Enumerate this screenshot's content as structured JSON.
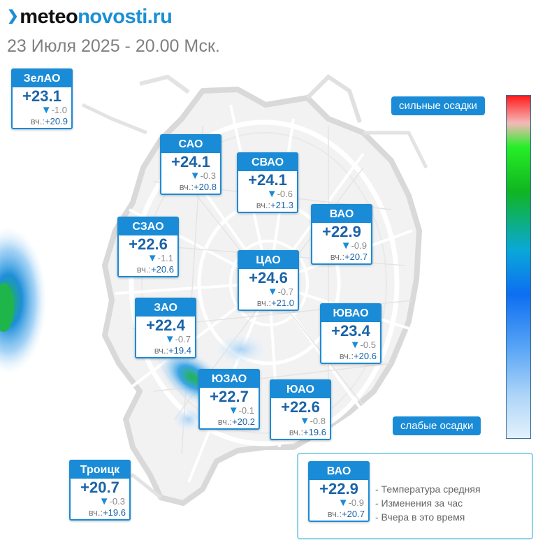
{
  "logo": {
    "part1": "meteo",
    "part2": "novosti.ru"
  },
  "datetime": "23 Июля 2025 - 20.00 Мск.",
  "yesterday_prefix": "вч.:",
  "regions": [
    {
      "name": "ЗелАО",
      "temp": "+23.1",
      "delta": "-1.0",
      "yesterday": "+20.9"
    },
    {
      "name": "САО",
      "temp": "+24.1",
      "delta": "-0.3",
      "yesterday": "+20.8"
    },
    {
      "name": "СВАО",
      "temp": "+24.1",
      "delta": "-0.6",
      "yesterday": "+21.3"
    },
    {
      "name": "ВАО",
      "temp": "+22.9",
      "delta": "-0.9",
      "yesterday": "+20.7"
    },
    {
      "name": "СЗАО",
      "temp": "+22.6",
      "delta": "-1.1",
      "yesterday": "+20.6"
    },
    {
      "name": "ЦАО",
      "temp": "+24.6",
      "delta": "-0.7",
      "yesterday": "+21.0"
    },
    {
      "name": "ЗАО",
      "temp": "+22.4",
      "delta": "-0.7",
      "yesterday": "+19.4"
    },
    {
      "name": "ЮВАО",
      "temp": "+23.4",
      "delta": "-0.5",
      "yesterday": "+20.6"
    },
    {
      "name": "ЮЗАО",
      "temp": "+22.7",
      "delta": "-0.1",
      "yesterday": "+20.2"
    },
    {
      "name": "ЮАО",
      "temp": "+22.6",
      "delta": "-0.8",
      "yesterday": "+19.6"
    },
    {
      "name": "Троицк",
      "temp": "+20.7",
      "delta": "-0.3",
      "yesterday": "+19.6"
    }
  ],
  "precip_scale": {
    "top_label": "сильные осадки",
    "bottom_label": "слабые осадки"
  },
  "legend": {
    "example": {
      "name": "ВАО",
      "temp": "+22.9",
      "delta": "-0.9",
      "yesterday": "+20.7"
    },
    "lines": [
      "- Температура средняя",
      "- Изменения за час",
      "- Вчера в это время"
    ]
  },
  "colors": {
    "accent": "#1a8bd6",
    "temp_text": "#1b63a8"
  }
}
